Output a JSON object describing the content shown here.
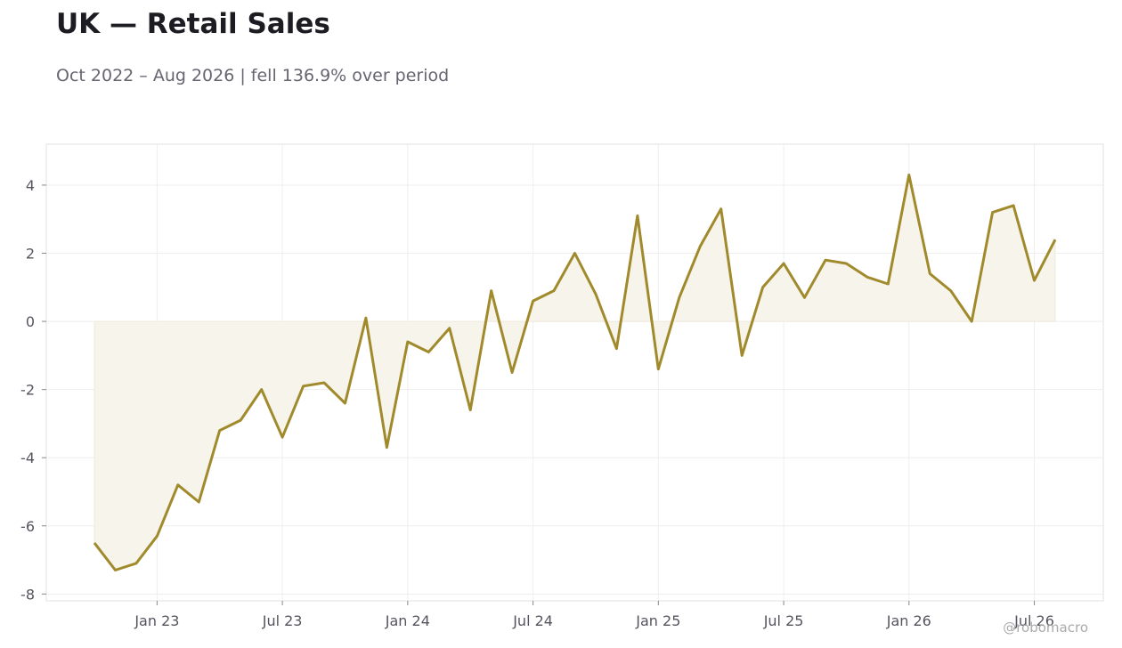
{
  "chart_data": {
    "type": "area",
    "title": "UK — Retail Sales",
    "subtitle": "Oct 2022 – Aug 2026 | fell 136.9% over period",
    "xlabel": "",
    "ylabel": "",
    "x_start": "2022-10",
    "x_end": "2026-08",
    "x_ticks": [
      "Jan 23",
      "Jul 23",
      "Jan 24",
      "Jul 24",
      "Jan 25",
      "Jul 25",
      "Jan 26",
      "Jul 26"
    ],
    "y_ticks": [
      4,
      2,
      0,
      -2,
      -4,
      -6,
      -8
    ],
    "ylim": [
      -8.2,
      5.2
    ],
    "grid": true,
    "legend": "none",
    "series": [
      {
        "x": [
          "2022-10",
          "2022-11",
          "2022-12",
          "2023-01",
          "2023-02",
          "2023-03",
          "2023-04",
          "2023-05",
          "2023-06",
          "2023-07",
          "2023-08",
          "2023-09",
          "2023-10",
          "2023-11",
          "2023-12",
          "2024-01",
          "2024-02",
          "2024-03",
          "2024-04",
          "2024-05",
          "2024-06",
          "2024-07",
          "2024-08",
          "2024-09",
          "2024-10",
          "2024-11",
          "2024-12",
          "2025-01",
          "2025-02",
          "2025-03",
          "2025-04",
          "2025-05",
          "2025-06",
          "2025-07",
          "2025-08",
          "2025-09",
          "2025-10",
          "2025-11",
          "2025-12",
          "2026-01",
          "2026-02",
          "2026-03",
          "2026-04",
          "2026-05",
          "2026-06",
          "2026-07",
          "2026-08"
        ],
        "values": [
          -6.5,
          -7.3,
          -7.1,
          -6.3,
          -4.8,
          -5.3,
          -3.2,
          -2.9,
          -2.0,
          -3.4,
          -1.9,
          -1.8,
          -2.4,
          0.1,
          -3.7,
          -0.6,
          -0.9,
          -0.2,
          -2.6,
          0.9,
          -1.5,
          0.6,
          0.9,
          2.0,
          0.8,
          -0.8,
          3.1,
          -1.4,
          0.7,
          2.2,
          3.3,
          -1.0,
          1.0,
          1.7,
          0.7,
          1.8,
          1.7,
          1.3,
          1.1,
          4.3,
          1.4,
          0.9,
          0.0,
          3.2,
          3.4,
          1.2,
          2.4
        ]
      }
    ],
    "colors": {
      "line": "#a08a2c",
      "fill": "#f7f4ec",
      "grid": "#eeeeee",
      "frame": "#e2e2e2"
    }
  },
  "watermark": "@robomacro"
}
